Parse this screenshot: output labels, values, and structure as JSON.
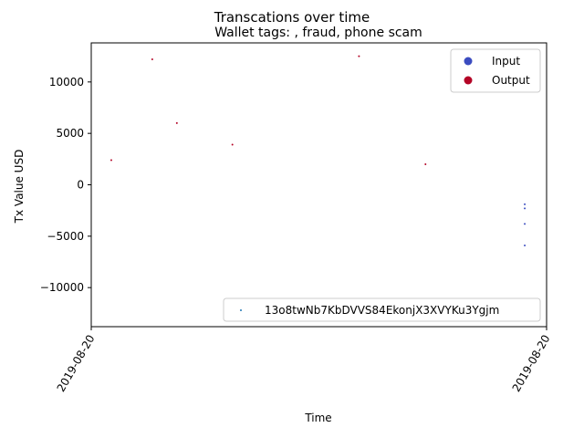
{
  "chart_data": {
    "type": "scatter",
    "suptitle": "Transcations over time",
    "title": "Wallet tags: , fraud, phone scam",
    "xlabel": "Time",
    "ylabel": "Tx Value USD",
    "ylim": [
      -13800,
      13800
    ],
    "yticks": [
      -10000,
      -5000,
      0,
      5000,
      10000
    ],
    "ytick_labels": [
      "−10000",
      "−5000",
      "0",
      "5000",
      "10000"
    ],
    "xlim": [
      0,
      1
    ],
    "xticks": [
      0,
      1
    ],
    "xtick_labels": [
      "2019-08-20",
      "2019-08-20"
    ],
    "grid": false,
    "legend_placement": "top-right",
    "colors": {
      "input": "#3b4cc0",
      "output": "#b40426",
      "address": "#1f77b4"
    },
    "series": [
      {
        "name": "Input",
        "color": "#3b4cc0",
        "points": [
          {
            "x": 0.952,
            "y": -1900
          },
          {
            "x": 0.952,
            "y": -2300
          },
          {
            "x": 0.952,
            "y": -3800
          },
          {
            "x": 0.952,
            "y": -5900
          }
        ]
      },
      {
        "name": "Output",
        "color": "#b40426",
        "points": [
          {
            "x": 0.044,
            "y": 2400
          },
          {
            "x": 0.134,
            "y": 12200
          },
          {
            "x": 0.188,
            "y": 6000
          },
          {
            "x": 0.31,
            "y": 3900
          },
          {
            "x": 0.588,
            "y": 12500
          },
          {
            "x": 0.734,
            "y": 2000
          }
        ]
      }
    ],
    "legend_upper": [
      "Input",
      "Output"
    ],
    "legend_lower": [
      "13o8twNb7KbDVVS84EkonjX3XVYKu3Ygjm"
    ]
  }
}
